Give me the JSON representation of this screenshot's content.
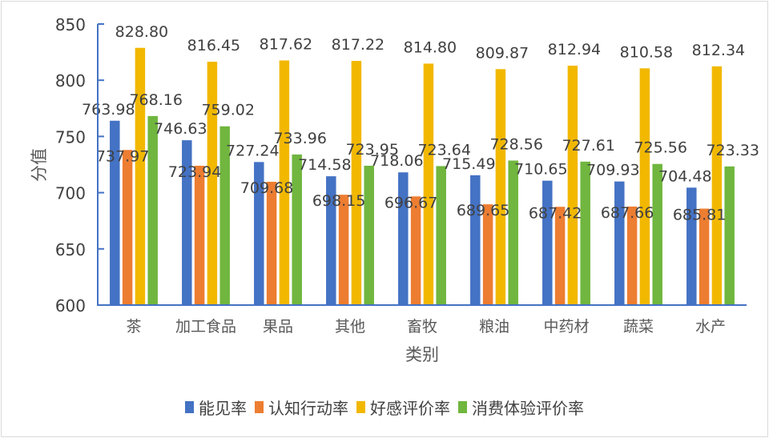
{
  "chart_data": {
    "type": "bar",
    "title": "",
    "xlabel": "类别",
    "ylabel": "分值",
    "ylim": [
      600,
      850
    ],
    "yticks": [
      600,
      650,
      700,
      750,
      800,
      850
    ],
    "grid": false,
    "legend_position": "bottom",
    "categories": [
      "茶",
      "加工食品",
      "果品",
      "其他",
      "畜牧",
      "粮油",
      "中药材",
      "蔬菜",
      "水产"
    ],
    "series": [
      {
        "name": "能见率",
        "color": "#4472C4",
        "values": [
          763.98,
          746.63,
          727.24,
          714.58,
          718.06,
          715.49,
          710.65,
          709.93,
          704.48
        ]
      },
      {
        "name": "认知行动率",
        "color": "#ED7D31",
        "values": [
          737.97,
          723.94,
          709.68,
          698.15,
          696.67,
          689.65,
          687.42,
          687.66,
          685.81
        ]
      },
      {
        "name": "好感评价率",
        "color": "#F2B800",
        "values": [
          828.8,
          816.45,
          817.62,
          817.22,
          814.8,
          809.87,
          812.94,
          810.58,
          812.34
        ]
      },
      {
        "name": "消费体验评价率",
        "color": "#70B63F",
        "values": [
          768.16,
          759.02,
          733.96,
          723.95,
          723.64,
          728.56,
          727.61,
          725.56,
          723.33
        ]
      }
    ]
  },
  "legend": {
    "items": [
      {
        "label": "能见率",
        "color": "#4472C4"
      },
      {
        "label": "认知行动率",
        "color": "#ED7D31"
      },
      {
        "label": "好感评价率",
        "color": "#F2B800"
      },
      {
        "label": "消费体验评价率",
        "color": "#70B63F"
      }
    ]
  },
  "axis_color": "#4472C4",
  "label_color": "#404040"
}
